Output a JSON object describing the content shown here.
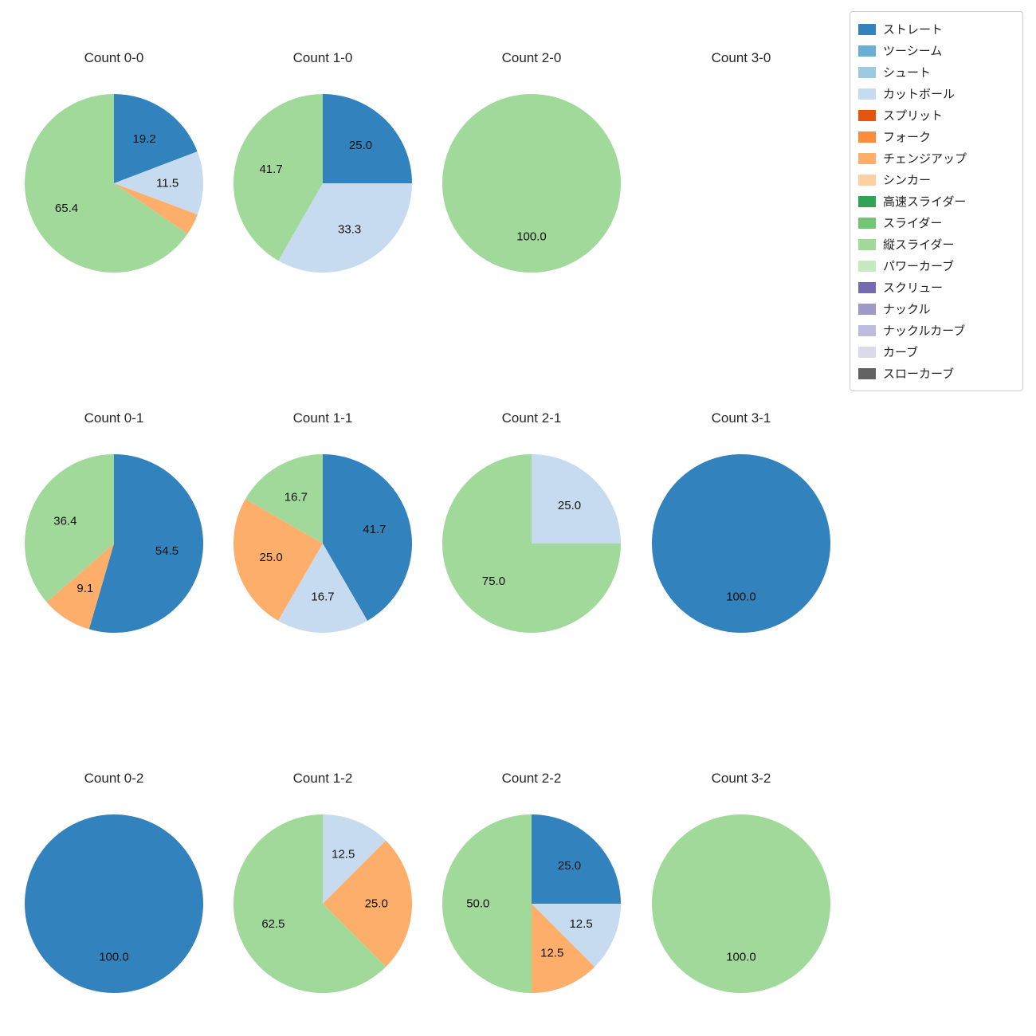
{
  "palette": {
    "ストレート": "#3182bd",
    "ツーシーム": "#6baed6",
    "シュート": "#9ecae1",
    "カットボール": "#c6dbef",
    "スプリット": "#e6550d",
    "フォーク": "#fd8d3c",
    "チェンジアップ": "#fdae6b",
    "シンカー": "#fdd0a2",
    "高速スライダー": "#31a354",
    "スライダー": "#74c476",
    "縦スライダー": "#a1d99b",
    "パワーカーブ": "#c7e9c0",
    "スクリュー": "#756bb1",
    "ナックル": "#9e9ac8",
    "ナックルカーブ": "#bcbddc",
    "カーブ": "#dadaeb",
    "スローカーブ": "#636363"
  },
  "legend": {
    "position": "upper right",
    "items": [
      {
        "label": "ストレート",
        "color": "#3182bd"
      },
      {
        "label": "ツーシーム",
        "color": "#6baed6"
      },
      {
        "label": "シュート",
        "color": "#9ecae1"
      },
      {
        "label": "カットボール",
        "color": "#c6dbef"
      },
      {
        "label": "スプリット",
        "color": "#e6550d"
      },
      {
        "label": "フォーク",
        "color": "#fd8d3c"
      },
      {
        "label": "チェンジアップ",
        "color": "#fdae6b"
      },
      {
        "label": "シンカー",
        "color": "#fdd0a2"
      },
      {
        "label": "高速スライダー",
        "color": "#31a354"
      },
      {
        "label": "スライダー",
        "color": "#74c476"
      },
      {
        "label": "縦スライダー",
        "color": "#a1d99b"
      },
      {
        "label": "パワーカーブ",
        "color": "#c7e9c0"
      },
      {
        "label": "スクリュー",
        "color": "#756bb1"
      },
      {
        "label": "ナックル",
        "color": "#9e9ac8"
      },
      {
        "label": "ナックルカーブ",
        "color": "#bcbddc"
      },
      {
        "label": "カーブ",
        "color": "#dadaeb"
      },
      {
        "label": "スローカーブ",
        "color": "#636363"
      }
    ]
  },
  "chart_data": [
    {
      "type": "pie",
      "title": "Count 0-0",
      "start_angle": "top",
      "direction": "clockwise",
      "slices": [
        {
          "label": "ストレート",
          "value": 19.2,
          "text": "19.2"
        },
        {
          "label": "カットボール",
          "value": 11.5,
          "text": "11.5"
        },
        {
          "label": "チェンジアップ",
          "value": 3.9,
          "text": ""
        },
        {
          "label": "縦スライダー",
          "value": 65.4,
          "text": "65.4"
        }
      ]
    },
    {
      "type": "pie",
      "title": "Count 1-0",
      "start_angle": "top",
      "direction": "clockwise",
      "slices": [
        {
          "label": "ストレート",
          "value": 25.0,
          "text": "25.0"
        },
        {
          "label": "カットボール",
          "value": 33.3,
          "text": "33.3"
        },
        {
          "label": "縦スライダー",
          "value": 41.7,
          "text": "41.7"
        }
      ]
    },
    {
      "type": "pie",
      "title": "Count 2-0",
      "start_angle": "top",
      "direction": "clockwise",
      "slices": [
        {
          "label": "縦スライダー",
          "value": 100.0,
          "text": "100.0"
        }
      ]
    },
    {
      "type": "pie",
      "title": "Count 3-0",
      "start_angle": "top",
      "direction": "clockwise",
      "slices": []
    },
    {
      "type": "pie",
      "title": "Count 0-1",
      "start_angle": "top",
      "direction": "clockwise",
      "slices": [
        {
          "label": "ストレート",
          "value": 54.5,
          "text": "54.5"
        },
        {
          "label": "チェンジアップ",
          "value": 9.1,
          "text": "9.1"
        },
        {
          "label": "縦スライダー",
          "value": 36.4,
          "text": "36.4"
        }
      ]
    },
    {
      "type": "pie",
      "title": "Count 1-1",
      "start_angle": "top",
      "direction": "clockwise",
      "slices": [
        {
          "label": "ストレート",
          "value": 41.7,
          "text": "41.7"
        },
        {
          "label": "カットボール",
          "value": 16.7,
          "text": "16.7"
        },
        {
          "label": "チェンジアップ",
          "value": 25.0,
          "text": "25.0"
        },
        {
          "label": "縦スライダー",
          "value": 16.7,
          "text": "16.7"
        }
      ]
    },
    {
      "type": "pie",
      "title": "Count 2-1",
      "start_angle": "top",
      "direction": "clockwise",
      "slices": [
        {
          "label": "カットボール",
          "value": 25.0,
          "text": "25.0"
        },
        {
          "label": "縦スライダー",
          "value": 75.0,
          "text": "75.0"
        }
      ]
    },
    {
      "type": "pie",
      "title": "Count 3-1",
      "start_angle": "top",
      "direction": "clockwise",
      "slices": [
        {
          "label": "ストレート",
          "value": 100.0,
          "text": "100.0"
        }
      ]
    },
    {
      "type": "pie",
      "title": "Count 0-2",
      "start_angle": "top",
      "direction": "clockwise",
      "slices": [
        {
          "label": "ストレート",
          "value": 100.0,
          "text": "100.0"
        }
      ]
    },
    {
      "type": "pie",
      "title": "Count 1-2",
      "start_angle": "top",
      "direction": "clockwise",
      "slices": [
        {
          "label": "カットボール",
          "value": 12.5,
          "text": "12.5"
        },
        {
          "label": "チェンジアップ",
          "value": 25.0,
          "text": "25.0"
        },
        {
          "label": "縦スライダー",
          "value": 62.5,
          "text": "62.5"
        }
      ]
    },
    {
      "type": "pie",
      "title": "Count 2-2",
      "start_angle": "top",
      "direction": "clockwise",
      "slices": [
        {
          "label": "ストレート",
          "value": 25.0,
          "text": "25.0"
        },
        {
          "label": "カットボール",
          "value": 12.5,
          "text": "12.5"
        },
        {
          "label": "チェンジアップ",
          "value": 12.5,
          "text": "12.5"
        },
        {
          "label": "縦スライダー",
          "value": 50.0,
          "text": "50.0"
        }
      ]
    },
    {
      "type": "pie",
      "title": "Count 3-2",
      "start_angle": "top",
      "direction": "clockwise",
      "slices": [
        {
          "label": "縦スライダー",
          "value": 100.0,
          "text": "100.0"
        }
      ]
    }
  ]
}
